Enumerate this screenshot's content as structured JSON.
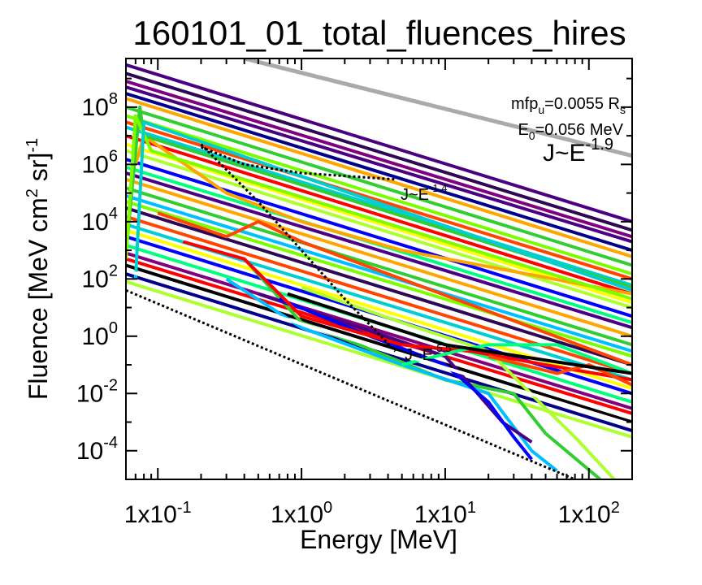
{
  "chart_data": {
    "type": "line",
    "title": "160101_01_total_fluences_hires",
    "xlabel": "Energy [MeV]",
    "ylabel": "Fluence [MeV cm² sr]⁻¹",
    "xscale": "log",
    "yscale": "log",
    "xlim": [
      0.06,
      200
    ],
    "ylim": [
      1e-05,
      5000000000
    ],
    "x_ticks": [
      {
        "value": 0.1,
        "label": "1x10",
        "exp": "-1"
      },
      {
        "value": 1,
        "label": "1x10",
        "exp": "0"
      },
      {
        "value": 10,
        "label": "1x10",
        "exp": "1"
      },
      {
        "value": 100,
        "label": "1x10",
        "exp": "2"
      }
    ],
    "y_ticks": [
      {
        "value": 0.0001,
        "label": "10",
        "exp": "-4"
      },
      {
        "value": 0.01,
        "label": "10",
        "exp": "-2"
      },
      {
        "value": 1,
        "label": "10",
        "exp": "0"
      },
      {
        "value": 100,
        "label": "10",
        "exp": "2"
      },
      {
        "value": 10000,
        "label": "10",
        "exp": "4"
      },
      {
        "value": 1000000,
        "label": "10",
        "exp": "6"
      },
      {
        "value": 100000000,
        "label": "10",
        "exp": "8"
      }
    ],
    "annotations": {
      "mfp": {
        "prefix": "mfp",
        "sub": "u",
        "middle": "=0.0055 R",
        "sub2": "s"
      },
      "e0": {
        "prefix": "E",
        "sub": "0",
        "suffix": "=0.056 MeV"
      },
      "slope_main": {
        "base": "J~E",
        "exp": "-1.9"
      },
      "slope_low": {
        "base": "J~E",
        "exp": "-1.4"
      },
      "slope_high": {
        "base": "J~E",
        "exp": "-5.5"
      }
    },
    "reference_lines": [
      {
        "kind": "solid",
        "color": "#aaaaaa",
        "points": [
          [
            0.4,
            5000000000
          ],
          [
            200,
            2000000
          ]
        ]
      },
      {
        "kind": "dotted",
        "color": "#000000",
        "points": [
          [
            0.06,
            40
          ],
          [
            80,
            1e-05
          ]
        ]
      },
      {
        "kind": "dotted",
        "color": "#000000",
        "points": [
          [
            0.2,
            4000000
          ],
          [
            0.4,
            1000000
          ],
          [
            1,
            500000
          ],
          [
            4.5,
            300000
          ]
        ]
      },
      {
        "kind": "dotted",
        "color": "#000000",
        "points": [
          [
            0.2,
            5000000
          ],
          [
            0.5,
            50000
          ],
          [
            1,
            1000
          ],
          [
            2,
            20
          ],
          [
            4.5,
            0.3
          ]
        ]
      }
    ],
    "series_colors": [
      "#4b0082",
      "#2e0854",
      "#00008b",
      "#0000ff",
      "#00bfff",
      "#00ced1",
      "#00ff7f",
      "#32cd32",
      "#7cfc00",
      "#adff2f",
      "#ffff00",
      "#ffa500",
      "#ff4500",
      "#ff0000",
      "#000000",
      "#ffffff"
    ],
    "series": [
      {
        "color": "#4b0082",
        "points": [
          [
            0.06,
            3000000000
          ],
          [
            200,
            10000
          ]
        ]
      },
      {
        "color": "#2e0854",
        "points": [
          [
            0.06,
            1500000000
          ],
          [
            200,
            5000
          ]
        ]
      },
      {
        "color": "#800080",
        "points": [
          [
            0.06,
            800000000
          ],
          [
            200,
            3000
          ]
        ]
      },
      {
        "color": "#4b0082",
        "points": [
          [
            0.06,
            500000000
          ],
          [
            200,
            2000
          ]
        ]
      },
      {
        "color": "#00008b",
        "points": [
          [
            0.06,
            300000000
          ],
          [
            200,
            1000
          ]
        ]
      },
      {
        "color": "#ffa500",
        "points": [
          [
            0.06,
            200000000
          ],
          [
            200,
            600
          ]
        ]
      },
      {
        "color": "#32cd32",
        "points": [
          [
            0.06,
            100000000
          ],
          [
            200,
            300
          ]
        ]
      },
      {
        "color": "#7cfc00",
        "points": [
          [
            0.06,
            50000000
          ],
          [
            200,
            150
          ]
        ]
      },
      {
        "color": "#ff4500",
        "points": [
          [
            0.06,
            30000000
          ],
          [
            200,
            100
          ]
        ]
      },
      {
        "color": "#00ced1",
        "points": [
          [
            0.06,
            20000000
          ],
          [
            200,
            60
          ]
        ]
      },
      {
        "color": "#ff0000",
        "points": [
          [
            0.06,
            10000000
          ],
          [
            200,
            30
          ]
        ]
      },
      {
        "color": "#ffff00",
        "points": [
          [
            0.06,
            5000000
          ],
          [
            200,
            15
          ]
        ]
      },
      {
        "color": "#adff2f",
        "points": [
          [
            0.06,
            3000000
          ],
          [
            200,
            10
          ]
        ]
      },
      {
        "color": "#0000ff",
        "points": [
          [
            0.06,
            1500000
          ],
          [
            200,
            5
          ]
        ]
      },
      {
        "color": "#00ff7f",
        "points": [
          [
            0.06,
            800000
          ],
          [
            200,
            3
          ]
        ]
      },
      {
        "color": "#4b0082",
        "points": [
          [
            0.06,
            500000
          ],
          [
            200,
            2
          ]
        ]
      },
      {
        "color": "#ffa500",
        "points": [
          [
            0.06,
            300000
          ],
          [
            200,
            1
          ]
        ]
      },
      {
        "color": "#32cd32",
        "points": [
          [
            0.06,
            150000
          ],
          [
            200,
            0.5
          ]
        ]
      },
      {
        "color": "#00bfff",
        "points": [
          [
            0.06,
            80000
          ],
          [
            200,
            0.3
          ]
        ]
      },
      {
        "color": "#7cfc00",
        "points": [
          [
            0.06,
            50000
          ],
          [
            200,
            0.2
          ]
        ]
      },
      {
        "color": "#2e0854",
        "points": [
          [
            0.06,
            30000
          ],
          [
            200,
            0.1
          ]
        ]
      },
      {
        "color": "#ff4500",
        "points": [
          [
            0.06,
            15000
          ],
          [
            200,
            0.05
          ]
        ]
      },
      {
        "color": "#00ced1",
        "points": [
          [
            0.06,
            8000
          ],
          [
            200,
            0.03
          ]
        ]
      },
      {
        "color": "#ffff00",
        "points": [
          [
            0.06,
            5000
          ],
          [
            200,
            0.015
          ]
        ]
      },
      {
        "color": "#0000ff",
        "points": [
          [
            0.06,
            3000
          ],
          [
            200,
            0.01
          ]
        ]
      },
      {
        "color": "#00ff7f",
        "points": [
          [
            0.06,
            1500
          ],
          [
            200,
            0.005
          ]
        ]
      },
      {
        "color": "#800080",
        "points": [
          [
            0.06,
            800
          ],
          [
            200,
            0.003
          ]
        ]
      },
      {
        "color": "#ff0000",
        "points": [
          [
            0.06,
            500
          ],
          [
            200,
            0.002
          ]
        ]
      },
      {
        "color": "#000000",
        "points": [
          [
            0.06,
            300
          ],
          [
            200,
            0.001
          ]
        ]
      },
      {
        "color": "#00008b",
        "points": [
          [
            0.06,
            150
          ],
          [
            200,
            0.0005
          ]
        ]
      },
      {
        "color": "#adff2f",
        "points": [
          [
            0.06,
            80
          ],
          [
            200,
            0.0003
          ]
        ]
      },
      {
        "color": "#ffa500",
        "points": [
          [
            0.07,
            1000000
          ],
          [
            0.08,
            10000000
          ],
          [
            0.3,
            100000
          ],
          [
            1,
            10000
          ],
          [
            5,
            1000
          ],
          [
            200,
            30
          ]
        ]
      },
      {
        "color": "#32cd32",
        "points": [
          [
            0.06,
            800
          ],
          [
            0.075,
            100000000
          ],
          [
            0.08,
            10000000
          ],
          [
            200,
            50
          ]
        ]
      },
      {
        "color": "#7cfc00",
        "points": [
          [
            0.06,
            500
          ],
          [
            0.07,
            50000000
          ],
          [
            0.09,
            3000000
          ],
          [
            200,
            20
          ]
        ]
      },
      {
        "color": "#00ced1",
        "points": [
          [
            0.07,
            100
          ],
          [
            0.08,
            30000000
          ],
          [
            200,
            40
          ]
        ]
      },
      {
        "color": "#ff4500",
        "points": [
          [
            0.1,
            20000
          ],
          [
            0.3,
            3000
          ],
          [
            0.5,
            10000
          ],
          [
            1,
            2000
          ],
          [
            200,
            0.1
          ]
        ]
      },
      {
        "color": "#32cd32",
        "points": [
          [
            0.4,
            500
          ],
          [
            1,
            3
          ],
          [
            2,
            0.8
          ],
          [
            10,
            0.03
          ],
          [
            30,
            0.01
          ],
          [
            50,
            0.0004
          ],
          [
            120,
            1e-05
          ]
        ]
      },
      {
        "color": "#00bfff",
        "points": [
          [
            0.3,
            100
          ],
          [
            1,
            2
          ],
          [
            5,
            0.1
          ],
          [
            20,
            0.01
          ],
          [
            40,
            0.0001
          ],
          [
            60,
            2e-05
          ]
        ]
      },
      {
        "color": "#4b0082",
        "points": [
          [
            0.5,
            30
          ],
          [
            2,
            3
          ],
          [
            10,
            0.2
          ],
          [
            25,
            0.001
          ],
          [
            40,
            0.0002
          ]
        ]
      },
      {
        "color": "#0000ff",
        "points": [
          [
            0.7,
            20
          ],
          [
            3,
            1
          ],
          [
            10,
            0.1
          ],
          [
            20,
            0.005
          ],
          [
            30,
            0.0003
          ],
          [
            40,
            5e-05
          ]
        ]
      },
      {
        "color": "#adff2f",
        "points": [
          [
            1,
            50
          ],
          [
            5,
            3
          ],
          [
            20,
            0.3
          ],
          [
            50,
            0.003
          ],
          [
            80,
            0.0003
          ],
          [
            150,
            1e-05
          ]
        ]
      },
      {
        "color": "#ff0000",
        "points": [
          [
            0.15,
            2000
          ],
          [
            0.4,
            500
          ],
          [
            1,
            5
          ],
          [
            5,
            0.5
          ],
          [
            15,
            0.3
          ],
          [
            50,
            0.1
          ],
          [
            200,
            0.03
          ]
        ]
      },
      {
        "color": "#00ff7f",
        "points": [
          [
            5,
            0.1
          ],
          [
            12,
            0.3
          ],
          [
            20,
            0.5
          ],
          [
            60,
            0.5
          ],
          [
            200,
            0.05
          ]
        ]
      },
      {
        "color": "#ff4500",
        "points": [
          [
            20,
            0.2
          ],
          [
            60,
            0.05
          ],
          [
            100,
            0.1
          ],
          [
            200,
            0.02
          ]
        ]
      },
      {
        "color": "#000000",
        "points": [
          [
            0.8,
            30
          ],
          [
            10,
            0.5
          ],
          [
            200,
            0.05
          ]
        ]
      },
      {
        "color": "#ffffff",
        "points": [
          [
            0.06,
            200
          ],
          [
            200,
            0.0008
          ]
        ]
      }
    ]
  }
}
